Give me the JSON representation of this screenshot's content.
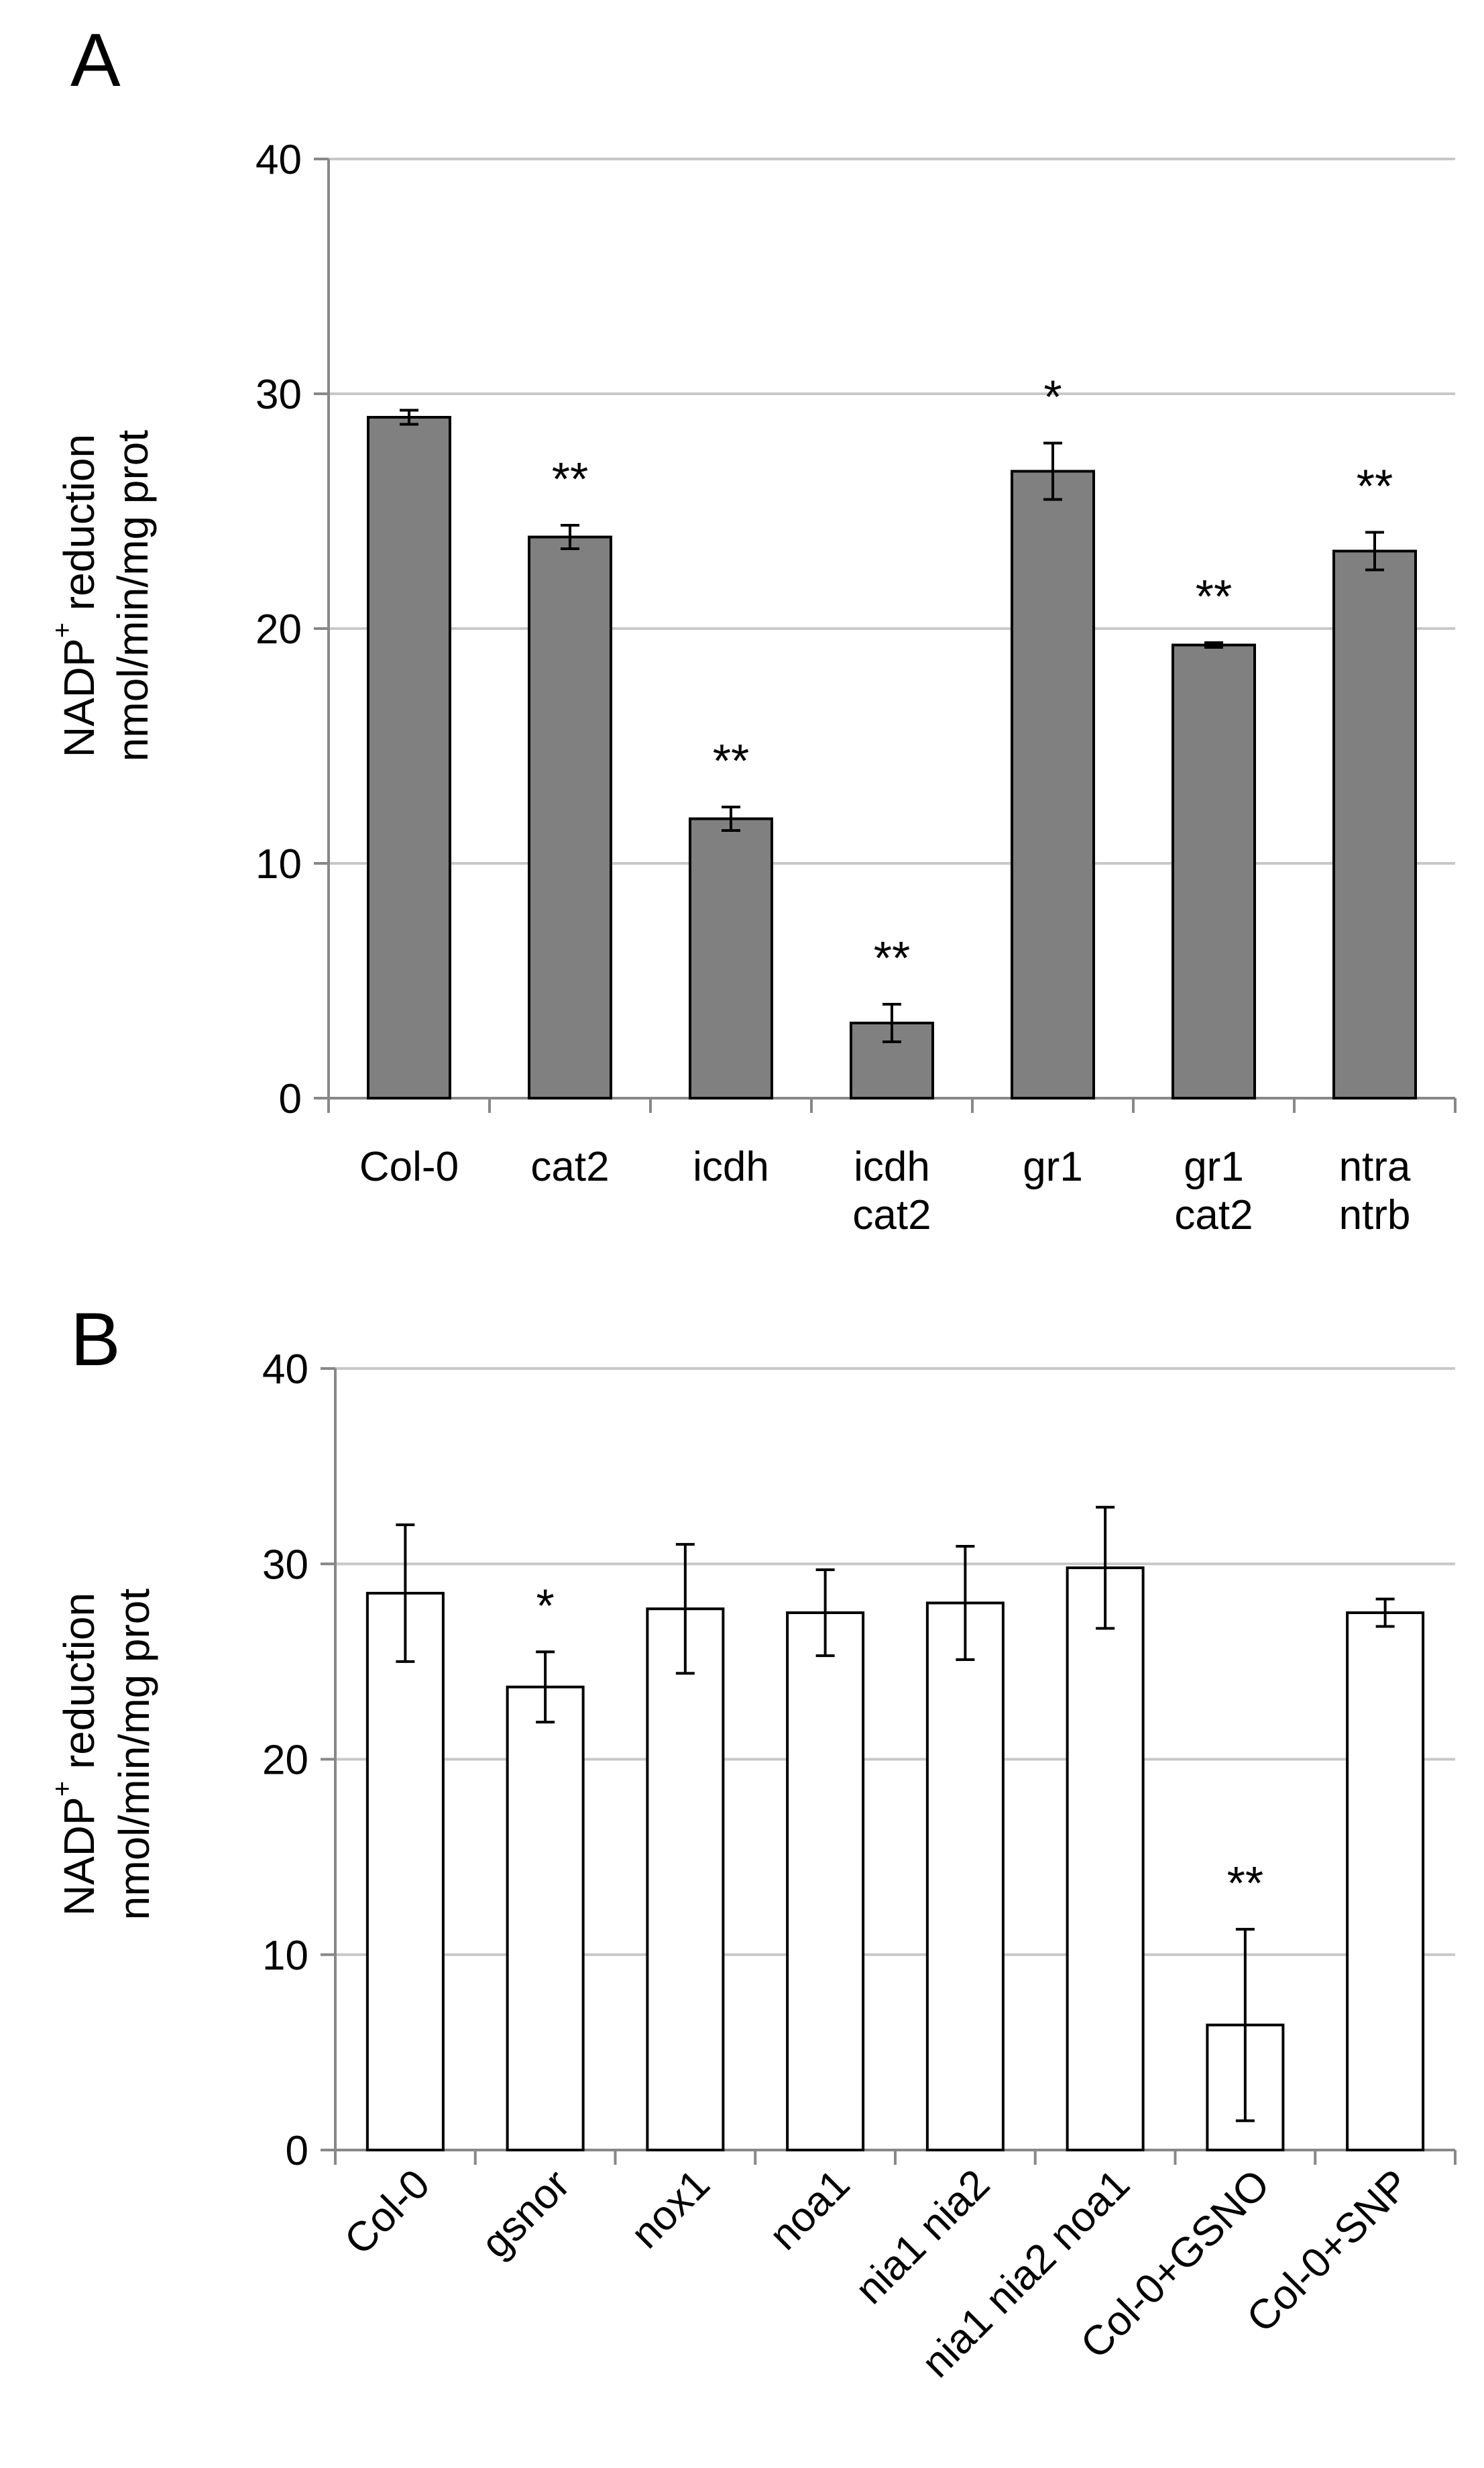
{
  "chart_data": [
    {
      "panel": "A",
      "type": "bar",
      "ylabel_lines": [
        "NADP",
        "+",
        "reduction",
        "nmol/min/mg prot"
      ],
      "ylim": [
        0,
        40
      ],
      "yticks": [
        "0",
        "10",
        "20",
        "30",
        "40"
      ],
      "bar_color": "#808080",
      "categories": [
        [
          "Col-0"
        ],
        [
          "cat2"
        ],
        [
          "icdh"
        ],
        [
          "icdh",
          "cat2"
        ],
        [
          "gr1"
        ],
        [
          "gr1",
          "cat2"
        ],
        [
          "ntra",
          "ntrb"
        ]
      ],
      "values": [
        29.0,
        23.9,
        11.9,
        3.2,
        26.7,
        19.3,
        23.3
      ],
      "errors": [
        0.3,
        0.5,
        0.5,
        0.8,
        1.2,
        0.1,
        0.8
      ],
      "significance": [
        "",
        "**",
        "**",
        "**",
        "*",
        "**",
        "**"
      ]
    },
    {
      "panel": "B",
      "type": "bar",
      "ylabel_lines": [
        "NADP",
        "+",
        "reduction",
        "nmol/min/mg prot"
      ],
      "ylim": [
        0,
        40
      ],
      "yticks": [
        "0",
        "10",
        "20",
        "30",
        "40"
      ],
      "bar_color": "#ffffff",
      "categories": [
        "Col-0",
        "gsnor",
        "nox1",
        "noa1",
        "nia1 nia2",
        "nia1 nia2 noa1",
        "Col-0+GSNO",
        "Col-0+SNP"
      ],
      "values": [
        28.5,
        23.7,
        27.7,
        27.5,
        28.0,
        29.8,
        6.4,
        27.5
      ],
      "errors": [
        3.5,
        1.8,
        3.3,
        2.2,
        2.9,
        3.1,
        4.9,
        0.7
      ],
      "significance": [
        "",
        "*",
        "",
        "",
        "",
        "",
        "**",
        ""
      ]
    }
  ]
}
